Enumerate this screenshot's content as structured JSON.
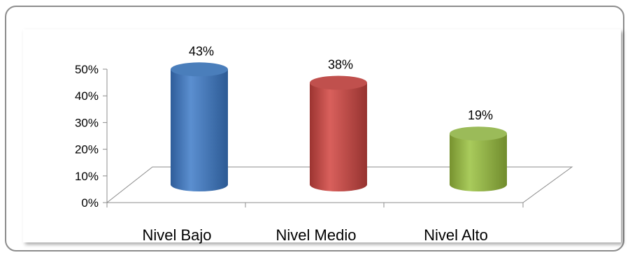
{
  "chart_data": {
    "type": "bar",
    "categories": [
      "Nivel Bajo",
      "Nivel Medio",
      "Nivel Alto"
    ],
    "values": [
      43,
      38,
      19
    ],
    "data_labels": [
      "43%",
      "38%",
      "19%"
    ],
    "y_ticks": [
      "0%",
      "10%",
      "20%",
      "30%",
      "40%",
      "50%"
    ],
    "ylim": [
      0,
      50
    ],
    "grid": false,
    "style": "3d-cylinder",
    "colors": [
      "#4a7ebb",
      "#c0504d",
      "#9bbb59"
    ]
  }
}
